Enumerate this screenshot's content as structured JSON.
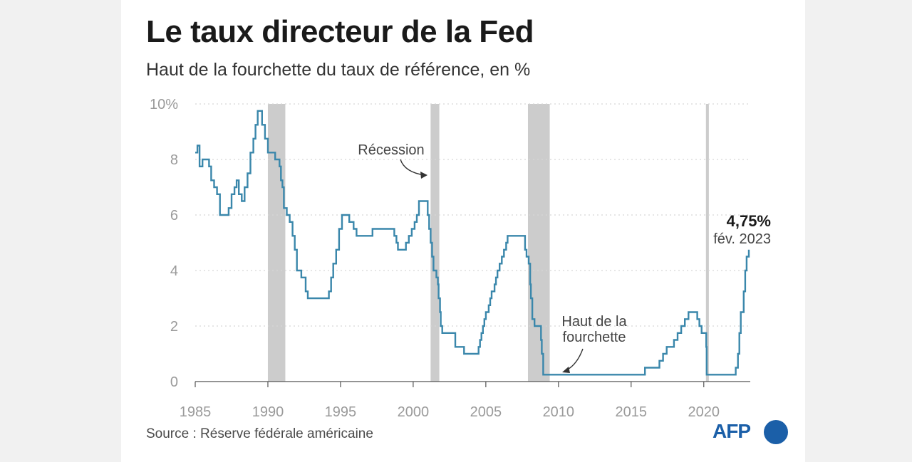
{
  "header": {
    "title": "Le taux directeur de la Fed",
    "subtitle": "Haut de la fourchette du taux de référence, en %"
  },
  "footer": {
    "source": "Source : Réserve fédérale américaine",
    "logo": "AFP"
  },
  "colors": {
    "line": "#3a87ab",
    "recession": "#cccccc",
    "grid": "#d6d6d6",
    "axis_text": "#9a9a9a",
    "logo": "#1b5fa8"
  },
  "chart_data": {
    "type": "line",
    "title": "Le taux directeur de la Fed",
    "subtitle": "Haut de la fourchette du taux de référence, en %",
    "xlim": [
      1985,
      2023.2
    ],
    "ylim": [
      0,
      10
    ],
    "x_ticks": [
      1985,
      1990,
      1995,
      2000,
      2005,
      2010,
      2015,
      2020
    ],
    "x_tick_labels": [
      "1985",
      "1990",
      "1995",
      "2000",
      "2005",
      "2010",
      "2015",
      "2020"
    ],
    "y_ticks": [
      0,
      2,
      4,
      6,
      8,
      10
    ],
    "y_tick_labels": [
      "0",
      "2",
      "4",
      "6",
      "8",
      "10%"
    ],
    "grid": "horizontal dotted",
    "recessions": [
      {
        "start": 1990.0,
        "end": 1991.2
      },
      {
        "start": 2001.2,
        "end": 2001.8
      },
      {
        "start": 2007.9,
        "end": 2009.4
      },
      {
        "start": 2020.15,
        "end": 2020.35
      }
    ],
    "series": [
      {
        "points": [
          [
            1985.0,
            8.25
          ],
          [
            1985.15,
            8.5
          ],
          [
            1985.3,
            7.75
          ],
          [
            1985.5,
            8.0
          ],
          [
            1985.8,
            8.0
          ],
          [
            1985.95,
            7.75
          ],
          [
            1986.1,
            7.25
          ],
          [
            1986.3,
            7.0
          ],
          [
            1986.5,
            6.75
          ],
          [
            1986.7,
            6.0
          ],
          [
            1987.0,
            6.0
          ],
          [
            1987.3,
            6.25
          ],
          [
            1987.5,
            6.75
          ],
          [
            1987.7,
            7.0
          ],
          [
            1987.85,
            7.25
          ],
          [
            1988.0,
            6.75
          ],
          [
            1988.2,
            6.5
          ],
          [
            1988.4,
            7.0
          ],
          [
            1988.6,
            7.5
          ],
          [
            1988.8,
            8.25
          ],
          [
            1989.0,
            8.75
          ],
          [
            1989.15,
            9.25
          ],
          [
            1989.3,
            9.75
          ],
          [
            1989.45,
            9.75
          ],
          [
            1989.6,
            9.25
          ],
          [
            1989.8,
            8.75
          ],
          [
            1990.0,
            8.25
          ],
          [
            1990.5,
            8.0
          ],
          [
            1990.8,
            7.75
          ],
          [
            1990.9,
            7.25
          ],
          [
            1991.0,
            7.0
          ],
          [
            1991.1,
            6.25
          ],
          [
            1991.3,
            6.0
          ],
          [
            1991.5,
            5.75
          ],
          [
            1991.7,
            5.25
          ],
          [
            1991.85,
            4.75
          ],
          [
            1992.0,
            4.0
          ],
          [
            1992.3,
            3.75
          ],
          [
            1992.6,
            3.25
          ],
          [
            1992.75,
            3.0
          ],
          [
            1993.0,
            3.0
          ],
          [
            1994.0,
            3.0
          ],
          [
            1994.2,
            3.25
          ],
          [
            1994.35,
            3.75
          ],
          [
            1994.5,
            4.25
          ],
          [
            1994.7,
            4.75
          ],
          [
            1994.9,
            5.5
          ],
          [
            1995.1,
            6.0
          ],
          [
            1995.6,
            5.75
          ],
          [
            1995.9,
            5.5
          ],
          [
            1996.1,
            5.25
          ],
          [
            1997.2,
            5.5
          ],
          [
            1998.7,
            5.25
          ],
          [
            1998.85,
            5.0
          ],
          [
            1998.95,
            4.75
          ],
          [
            1999.5,
            5.0
          ],
          [
            1999.7,
            5.25
          ],
          [
            1999.9,
            5.5
          ],
          [
            2000.1,
            5.75
          ],
          [
            2000.25,
            6.0
          ],
          [
            2000.4,
            6.5
          ],
          [
            2001.0,
            6.0
          ],
          [
            2001.1,
            5.5
          ],
          [
            2001.2,
            5.0
          ],
          [
            2001.3,
            4.5
          ],
          [
            2001.4,
            4.0
          ],
          [
            2001.6,
            3.75
          ],
          [
            2001.7,
            3.5
          ],
          [
            2001.75,
            3.0
          ],
          [
            2001.85,
            2.5
          ],
          [
            2001.9,
            2.0
          ],
          [
            2002.0,
            1.75
          ],
          [
            2002.9,
            1.25
          ],
          [
            2003.5,
            1.0
          ],
          [
            2004.5,
            1.25
          ],
          [
            2004.6,
            1.5
          ],
          [
            2004.7,
            1.75
          ],
          [
            2004.8,
            2.0
          ],
          [
            2004.9,
            2.25
          ],
          [
            2005.0,
            2.5
          ],
          [
            2005.2,
            2.75
          ],
          [
            2005.3,
            3.0
          ],
          [
            2005.4,
            3.25
          ],
          [
            2005.6,
            3.5
          ],
          [
            2005.7,
            3.75
          ],
          [
            2005.8,
            4.0
          ],
          [
            2005.95,
            4.25
          ],
          [
            2006.1,
            4.5
          ],
          [
            2006.25,
            4.75
          ],
          [
            2006.4,
            5.0
          ],
          [
            2006.5,
            5.25
          ],
          [
            2007.7,
            4.75
          ],
          [
            2007.8,
            4.5
          ],
          [
            2007.95,
            4.25
          ],
          [
            2008.05,
            3.5
          ],
          [
            2008.1,
            3.0
          ],
          [
            2008.2,
            2.25
          ],
          [
            2008.35,
            2.0
          ],
          [
            2008.8,
            1.5
          ],
          [
            2008.85,
            1.0
          ],
          [
            2008.95,
            0.25
          ],
          [
            2015.95,
            0.5
          ],
          [
            2016.95,
            0.75
          ],
          [
            2017.2,
            1.0
          ],
          [
            2017.45,
            1.25
          ],
          [
            2017.95,
            1.5
          ],
          [
            2018.2,
            1.75
          ],
          [
            2018.45,
            2.0
          ],
          [
            2018.7,
            2.25
          ],
          [
            2018.95,
            2.5
          ],
          [
            2019.55,
            2.25
          ],
          [
            2019.7,
            2.0
          ],
          [
            2019.85,
            1.75
          ],
          [
            2020.17,
            1.25
          ],
          [
            2020.2,
            0.25
          ],
          [
            2022.2,
            0.5
          ],
          [
            2022.35,
            1.0
          ],
          [
            2022.45,
            1.75
          ],
          [
            2022.55,
            2.5
          ],
          [
            2022.75,
            3.25
          ],
          [
            2022.85,
            4.0
          ],
          [
            2022.95,
            4.5
          ],
          [
            2023.1,
            4.75
          ]
        ]
      }
    ],
    "annotations": [
      {
        "text": "Récession",
        "x": 2001.5,
        "y": 7.35
      },
      {
        "text": "Haut de la fourchette",
        "lines": [
          "Haut de la",
          "fourchette"
        ],
        "x": 2010.0,
        "y": 0.3
      },
      {
        "text": "4,75%",
        "x": 2023.1,
        "y": 5.3
      },
      {
        "text": "fév. 2023",
        "x": 2023.1,
        "y": 4.75
      }
    ]
  }
}
